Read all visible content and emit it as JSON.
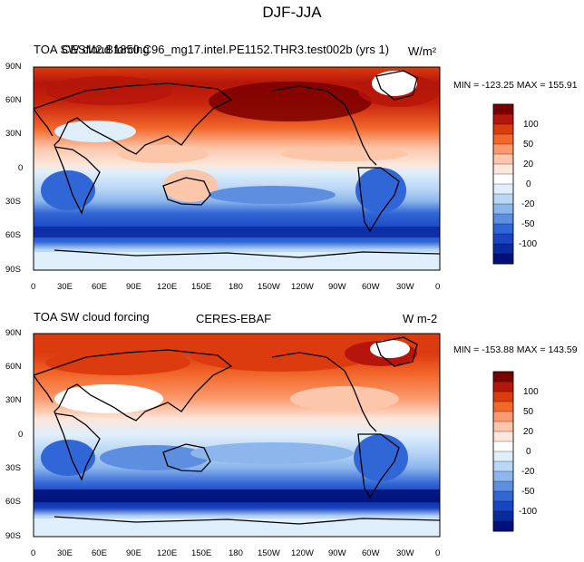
{
  "title": "DJF-JJA",
  "colorbar": {
    "labels": [
      "100",
      "50",
      "20",
      "0",
      "-20",
      "-50",
      "-100"
    ],
    "colors": [
      "#7a0000",
      "#b5150a",
      "#dc3b10",
      "#f2672a",
      "#fb9a6e",
      "#fcc6aa",
      "#fde6da",
      "#ffffff",
      "#dfeefb",
      "#b9d6f5",
      "#8db6ec",
      "#5e8ee0",
      "#3166d6",
      "#1a45c2",
      "#0a2aa0",
      "#00107a"
    ]
  },
  "axes": {
    "lat_labels": [
      "90N",
      "60N",
      "30N",
      "0",
      "30S",
      "60S",
      "90S"
    ],
    "lon_labels": [
      "0",
      "30E",
      "60E",
      "90E",
      "120E",
      "150E",
      "180",
      "150W",
      "120W",
      "90W",
      "60W",
      "30W",
      "0"
    ]
  },
  "panels": [
    {
      "left_title": "TOA SW cloud forcing",
      "center_title": "CESM2.B1850.C96_mg17.intel.PE1152.THR3.test002b (yrs 1)",
      "right_title": "W/m²",
      "min_max": "MIN = -123.25 MAX = 155.91"
    },
    {
      "left_title": "TOA SW cloud forcing",
      "center_title": "CERES-EBAF",
      "right_title": "W m-2",
      "min_max": "MIN = -153.88 MAX = 143.59"
    }
  ]
}
